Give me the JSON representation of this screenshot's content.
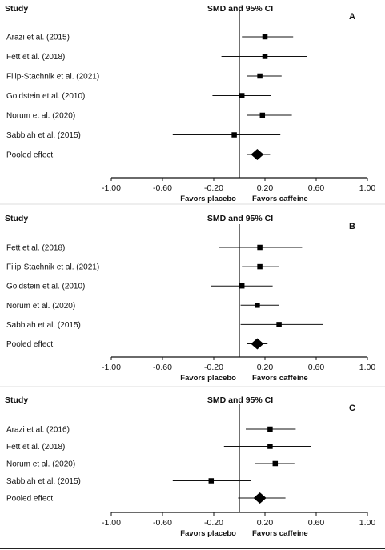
{
  "chart_data": [
    {
      "type": "forest",
      "panel_label": "A",
      "study_header": "Study",
      "effect_header": "SMD and 95% CI",
      "xlim": [
        -1.0,
        1.0
      ],
      "x_ticks": [
        "-1.00",
        "-0.60",
        "-0.20",
        "0.20",
        "0.60",
        "1.00"
      ],
      "favors_left": "Favors placebo",
      "favors_right": "Favors caffeine",
      "studies": [
        {
          "label": "Arazi et al. (2015)",
          "estimate": 0.2,
          "ci": [
            0.02,
            0.42
          ]
        },
        {
          "label": "Fett et al. (2018)",
          "estimate": 0.2,
          "ci": [
            -0.14,
            0.53
          ]
        },
        {
          "label": "Filip-Stachnik et al. (2021)",
          "estimate": 0.16,
          "ci": [
            0.06,
            0.33
          ]
        },
        {
          "label": "Goldstein et al. (2010)",
          "estimate": 0.02,
          "ci": [
            -0.21,
            0.25
          ]
        },
        {
          "label": "Norum et al. (2020)",
          "estimate": 0.18,
          "ci": [
            0.06,
            0.41
          ]
        },
        {
          "label": "Sabblah et al. (2015)",
          "estimate": -0.04,
          "ci": [
            -0.52,
            0.32
          ]
        },
        {
          "label": "Pooled effect",
          "estimate": 0.14,
          "ci": [
            0.06,
            0.24
          ],
          "pooled": true
        }
      ]
    },
    {
      "type": "forest",
      "panel_label": "B",
      "study_header": "Study",
      "effect_header": "SMD and 95% CI",
      "xlim": [
        -1.0,
        1.0
      ],
      "x_ticks": [
        "-1.00",
        "-0.60",
        "-0.20",
        "0.20",
        "0.60",
        "1.00"
      ],
      "favors_left": "Favors placebo",
      "favors_right": "Favors caffeine",
      "studies": [
        {
          "label": "Fett et al. (2018)",
          "estimate": 0.16,
          "ci": [
            -0.16,
            0.49
          ]
        },
        {
          "label": "Filip-Stachnik et al. (2021)",
          "estimate": 0.16,
          "ci": [
            0.02,
            0.31
          ]
        },
        {
          "label": "Goldstein et al. (2010)",
          "estimate": 0.02,
          "ci": [
            -0.22,
            0.26
          ]
        },
        {
          "label": "Norum et al. (2020)",
          "estimate": 0.14,
          "ci": [
            0.01,
            0.31
          ]
        },
        {
          "label": "Sabblah et al. (2015)",
          "estimate": 0.31,
          "ci": [
            0.01,
            0.65
          ]
        },
        {
          "label": "Pooled effect",
          "estimate": 0.14,
          "ci": [
            0.06,
            0.22
          ],
          "pooled": true
        }
      ]
    },
    {
      "type": "forest",
      "panel_label": "C",
      "study_header": "Study",
      "effect_header": "SMD and 95% CI",
      "xlim": [
        -1.0,
        1.0
      ],
      "x_ticks": [
        "-1.00",
        "-0.60",
        "-0.20",
        "0.20",
        "0.60",
        "1.00"
      ],
      "favors_left": "Favors placebo",
      "favors_right": "Favors caffeine",
      "studies": [
        {
          "label": "Arazi et al. (2016)",
          "estimate": 0.24,
          "ci": [
            0.05,
            0.44
          ]
        },
        {
          "label": "Fett et al. (2018)",
          "estimate": 0.24,
          "ci": [
            -0.12,
            0.56
          ]
        },
        {
          "label": "Norum et al. (2020)",
          "estimate": 0.28,
          "ci": [
            0.12,
            0.43
          ]
        },
        {
          "label": "Sabblah et al. (2015)",
          "estimate": -0.22,
          "ci": [
            -0.52,
            0.09
          ]
        },
        {
          "label": "Pooled effect",
          "estimate": 0.16,
          "ci": [
            -0.01,
            0.36
          ],
          "pooled": true
        }
      ]
    }
  ]
}
